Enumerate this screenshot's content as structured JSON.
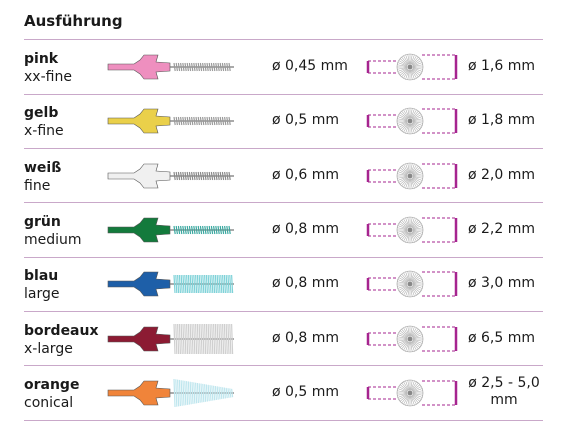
{
  "title": "Ausführung",
  "accent": "#a6248f",
  "rows": [
    {
      "name": "pink",
      "size": "xx-fine",
      "wire": "ø 0,45 mm",
      "outer": "ø 1,6 mm",
      "handle": "#ee8fbf",
      "bristle": "#9a9a9a",
      "bristle_type": "wire"
    },
    {
      "name": "gelb",
      "size": "x-fine",
      "wire": "ø 0,5 mm",
      "outer": "ø 1,8 mm",
      "handle": "#ead04a",
      "bristle": "#9a9a9a",
      "bristle_type": "wire"
    },
    {
      "name": "weiß",
      "size": "fine",
      "wire": "ø 0,6 mm",
      "outer": "ø 2,0 mm",
      "handle": "#f0f0f0",
      "bristle": "#8a8a8a",
      "bristle_type": "wire"
    },
    {
      "name": "grün",
      "size": "medium",
      "wire": "ø 0,8 mm",
      "outer": "ø 2,2 mm",
      "handle": "#137a3c",
      "bristle": "#3aa8a0",
      "bristle_type": "wire"
    },
    {
      "name": "blau",
      "size": "large",
      "wire": "ø 0,8 mm",
      "outer": "ø 3,0 mm",
      "handle": "#1e5fa8",
      "bristle": "#7fd2d8",
      "bristle_type": "brush"
    },
    {
      "name": "bordeaux",
      "size": "x-large",
      "wire": "ø 0,8 mm",
      "outer": "ø 6,5 mm",
      "handle": "#8c1b33",
      "bristle": "#f4f4f4",
      "bristle_type": "brush"
    },
    {
      "name": "orange",
      "size": "conical",
      "wire": "ø 0,5 mm",
      "outer": "ø 2,5 - 5,0 mm",
      "handle": "#f0843a",
      "bristle": "#bfe6ee",
      "bristle_type": "conical"
    }
  ]
}
